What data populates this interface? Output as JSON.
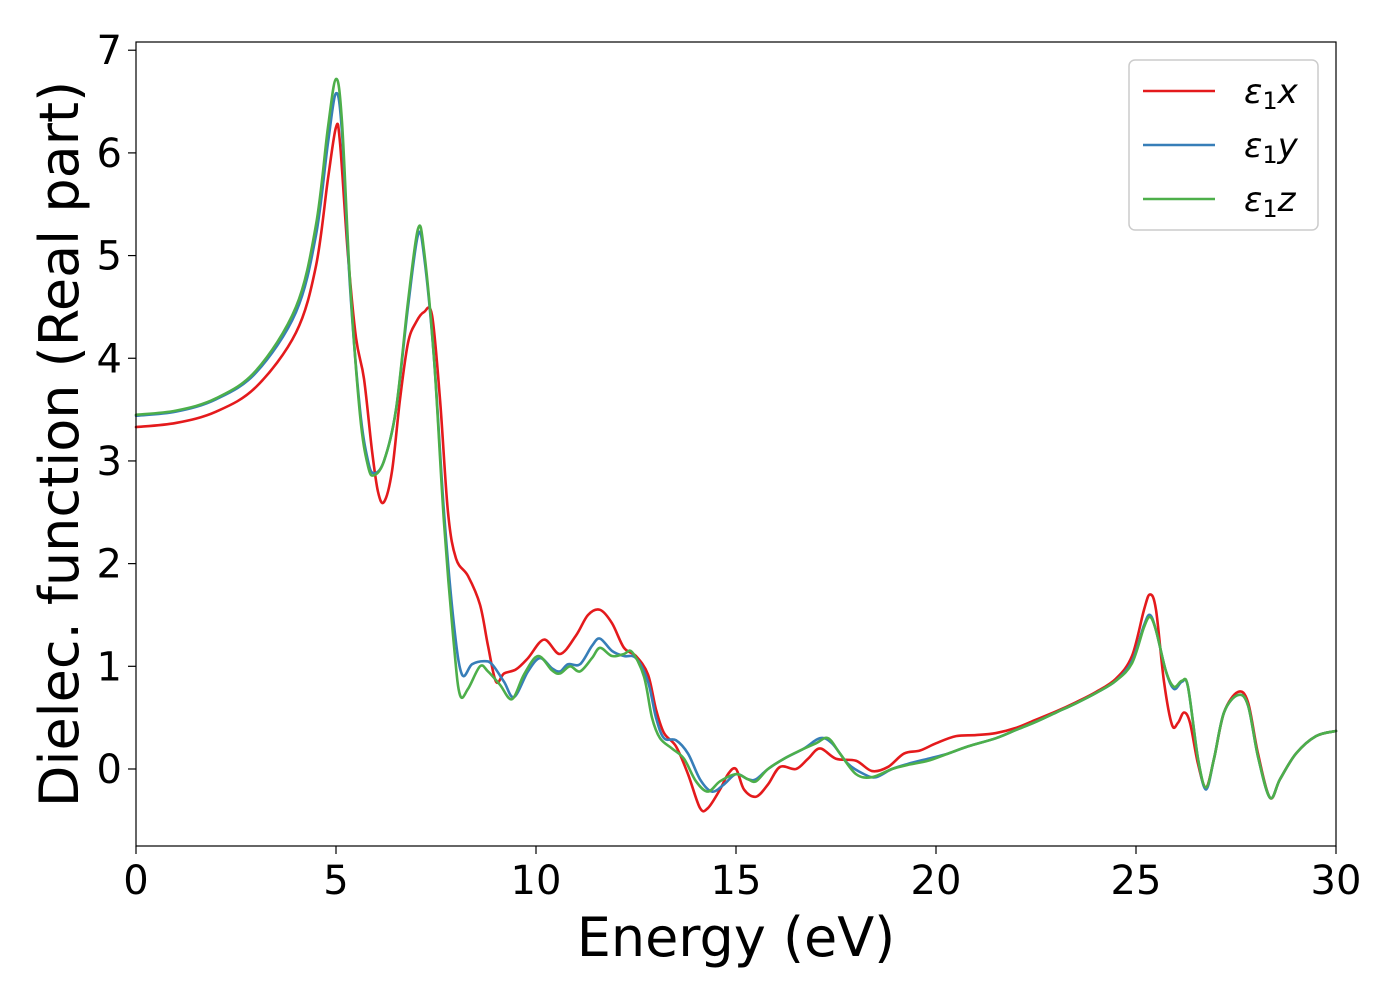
{
  "chart_data": {
    "type": "line",
    "xlabel": "Energy (eV)",
    "ylabel": "Dielec. function (Real part)",
    "xlim": [
      0,
      30
    ],
    "ylim": [
      -0.75,
      7.08
    ],
    "xticks": [
      0,
      5,
      10,
      15,
      20,
      25,
      30
    ],
    "yticks": [
      0,
      1,
      2,
      3,
      4,
      5,
      6,
      7
    ],
    "grid": false,
    "legend_position": "top-right",
    "series": [
      {
        "name": "ε1x",
        "legend": {
          "prefix": "ε",
          "sub": "1",
          "suffix": "x"
        },
        "color": "#e41a1c",
        "points": [
          [
            0,
            3.33
          ],
          [
            1,
            3.37
          ],
          [
            2,
            3.48
          ],
          [
            3,
            3.72
          ],
          [
            4,
            4.25
          ],
          [
            4.5,
            4.9
          ],
          [
            4.8,
            5.75
          ],
          [
            5.0,
            6.25
          ],
          [
            5.1,
            6.1
          ],
          [
            5.3,
            5.0
          ],
          [
            5.5,
            4.2
          ],
          [
            5.7,
            3.8
          ],
          [
            5.9,
            3.1
          ],
          [
            6.05,
            2.7
          ],
          [
            6.2,
            2.6
          ],
          [
            6.4,
            2.9
          ],
          [
            6.6,
            3.6
          ],
          [
            6.8,
            4.15
          ],
          [
            7.0,
            4.35
          ],
          [
            7.2,
            4.45
          ],
          [
            7.4,
            4.42
          ],
          [
            7.6,
            3.6
          ],
          [
            7.8,
            2.5
          ],
          [
            8.0,
            2.05
          ],
          [
            8.3,
            1.88
          ],
          [
            8.6,
            1.6
          ],
          [
            8.8,
            1.2
          ],
          [
            9.0,
            0.85
          ],
          [
            9.2,
            0.93
          ],
          [
            9.5,
            0.97
          ],
          [
            9.8,
            1.08
          ],
          [
            10.2,
            1.26
          ],
          [
            10.6,
            1.12
          ],
          [
            11.0,
            1.3
          ],
          [
            11.3,
            1.5
          ],
          [
            11.6,
            1.55
          ],
          [
            11.9,
            1.42
          ],
          [
            12.2,
            1.18
          ],
          [
            12.5,
            1.1
          ],
          [
            12.8,
            0.92
          ],
          [
            13.0,
            0.58
          ],
          [
            13.2,
            0.35
          ],
          [
            13.5,
            0.22
          ],
          [
            13.8,
            -0.05
          ],
          [
            14.1,
            -0.38
          ],
          [
            14.3,
            -0.38
          ],
          [
            14.6,
            -0.2
          ],
          [
            14.8,
            -0.05
          ],
          [
            15.0,
            0.0
          ],
          [
            15.2,
            -0.2
          ],
          [
            15.5,
            -0.27
          ],
          [
            15.8,
            -0.15
          ],
          [
            16.1,
            0.02
          ],
          [
            16.5,
            0.0
          ],
          [
            16.8,
            0.1
          ],
          [
            17.1,
            0.2
          ],
          [
            17.5,
            0.1
          ],
          [
            18.0,
            0.08
          ],
          [
            18.4,
            -0.02
          ],
          [
            18.8,
            0.02
          ],
          [
            19.2,
            0.15
          ],
          [
            19.6,
            0.18
          ],
          [
            20.0,
            0.25
          ],
          [
            20.5,
            0.32
          ],
          [
            21.0,
            0.33
          ],
          [
            21.5,
            0.35
          ],
          [
            22.0,
            0.4
          ],
          [
            22.5,
            0.48
          ],
          [
            23.0,
            0.56
          ],
          [
            23.5,
            0.65
          ],
          [
            24.0,
            0.75
          ],
          [
            24.5,
            0.88
          ],
          [
            24.9,
            1.1
          ],
          [
            25.2,
            1.55
          ],
          [
            25.35,
            1.7
          ],
          [
            25.5,
            1.55
          ],
          [
            25.7,
            0.85
          ],
          [
            25.9,
            0.43
          ],
          [
            26.05,
            0.45
          ],
          [
            26.2,
            0.55
          ],
          [
            26.35,
            0.45
          ],
          [
            26.55,
            0.05
          ],
          [
            26.75,
            -0.18
          ],
          [
            26.95,
            0.1
          ],
          [
            27.2,
            0.55
          ],
          [
            27.55,
            0.75
          ],
          [
            27.8,
            0.65
          ],
          [
            28.05,
            0.15
          ],
          [
            28.35,
            -0.28
          ],
          [
            28.6,
            -0.1
          ],
          [
            29.0,
            0.15
          ],
          [
            29.5,
            0.32
          ],
          [
            30.0,
            0.37
          ]
        ]
      },
      {
        "name": "ε1y",
        "legend": {
          "prefix": "ε",
          "sub": "1",
          "suffix": "y"
        },
        "color": "#377eb8",
        "points": [
          [
            0,
            3.44
          ],
          [
            1,
            3.48
          ],
          [
            2,
            3.6
          ],
          [
            3,
            3.86
          ],
          [
            4,
            4.45
          ],
          [
            4.5,
            5.2
          ],
          [
            4.8,
            6.1
          ],
          [
            5.0,
            6.58
          ],
          [
            5.15,
            6.2
          ],
          [
            5.35,
            4.7
          ],
          [
            5.6,
            3.5
          ],
          [
            5.8,
            3.0
          ],
          [
            5.95,
            2.88
          ],
          [
            6.2,
            3.0
          ],
          [
            6.5,
            3.5
          ],
          [
            6.8,
            4.5
          ],
          [
            7.05,
            5.2
          ],
          [
            7.2,
            5.0
          ],
          [
            7.45,
            4.0
          ],
          [
            7.7,
            2.5
          ],
          [
            7.95,
            1.4
          ],
          [
            8.15,
            0.92
          ],
          [
            8.4,
            1.02
          ],
          [
            8.7,
            1.05
          ],
          [
            8.9,
            1.02
          ],
          [
            9.2,
            0.85
          ],
          [
            9.45,
            0.7
          ],
          [
            9.8,
            0.95
          ],
          [
            10.1,
            1.08
          ],
          [
            10.4,
            0.98
          ],
          [
            10.6,
            0.95
          ],
          [
            10.8,
            1.02
          ],
          [
            11.1,
            1.02
          ],
          [
            11.4,
            1.2
          ],
          [
            11.6,
            1.27
          ],
          [
            11.9,
            1.15
          ],
          [
            12.2,
            1.1
          ],
          [
            12.5,
            1.08
          ],
          [
            12.8,
            0.85
          ],
          [
            13.0,
            0.5
          ],
          [
            13.2,
            0.3
          ],
          [
            13.5,
            0.28
          ],
          [
            13.8,
            0.15
          ],
          [
            14.1,
            -0.1
          ],
          [
            14.4,
            -0.22
          ],
          [
            14.7,
            -0.15
          ],
          [
            15.0,
            -0.05
          ],
          [
            15.3,
            -0.1
          ],
          [
            15.5,
            -0.1
          ],
          [
            15.8,
            0.0
          ],
          [
            16.2,
            0.1
          ],
          [
            16.7,
            0.2
          ],
          [
            17.1,
            0.3
          ],
          [
            17.4,
            0.25
          ],
          [
            17.8,
            0.05
          ],
          [
            18.2,
            -0.05
          ],
          [
            18.5,
            -0.08
          ],
          [
            18.9,
            0.0
          ],
          [
            19.3,
            0.05
          ],
          [
            19.8,
            0.1
          ],
          [
            20.3,
            0.15
          ],
          [
            20.8,
            0.22
          ],
          [
            21.5,
            0.3
          ],
          [
            22.0,
            0.38
          ],
          [
            22.5,
            0.46
          ],
          [
            23.0,
            0.55
          ],
          [
            23.5,
            0.64
          ],
          [
            24.0,
            0.74
          ],
          [
            24.5,
            0.86
          ],
          [
            24.9,
            1.05
          ],
          [
            25.2,
            1.4
          ],
          [
            25.35,
            1.5
          ],
          [
            25.5,
            1.35
          ],
          [
            25.75,
            0.95
          ],
          [
            25.95,
            0.78
          ],
          [
            26.15,
            0.85
          ],
          [
            26.3,
            0.8
          ],
          [
            26.55,
            0.1
          ],
          [
            26.75,
            -0.2
          ],
          [
            26.95,
            0.1
          ],
          [
            27.2,
            0.55
          ],
          [
            27.55,
            0.72
          ],
          [
            27.8,
            0.62
          ],
          [
            28.05,
            0.12
          ],
          [
            28.35,
            -0.28
          ],
          [
            28.6,
            -0.1
          ],
          [
            29.0,
            0.15
          ],
          [
            29.5,
            0.32
          ],
          [
            30.0,
            0.37
          ]
        ]
      },
      {
        "name": "ε1z",
        "legend": {
          "prefix": "ε",
          "sub": "1",
          "suffix": "z"
        },
        "color": "#4daf4a",
        "points": [
          [
            0,
            3.45
          ],
          [
            1,
            3.49
          ],
          [
            2,
            3.61
          ],
          [
            3,
            3.88
          ],
          [
            4,
            4.5
          ],
          [
            4.5,
            5.3
          ],
          [
            4.8,
            6.25
          ],
          [
            5.0,
            6.72
          ],
          [
            5.15,
            6.3
          ],
          [
            5.35,
            4.75
          ],
          [
            5.6,
            3.45
          ],
          [
            5.8,
            2.95
          ],
          [
            5.95,
            2.86
          ],
          [
            6.2,
            3.0
          ],
          [
            6.5,
            3.5
          ],
          [
            6.8,
            4.55
          ],
          [
            7.05,
            5.26
          ],
          [
            7.2,
            5.05
          ],
          [
            7.45,
            4.0
          ],
          [
            7.7,
            2.4
          ],
          [
            7.95,
            1.2
          ],
          [
            8.1,
            0.72
          ],
          [
            8.3,
            0.78
          ],
          [
            8.6,
            1.0
          ],
          [
            8.8,
            0.95
          ],
          [
            9.1,
            0.82
          ],
          [
            9.4,
            0.68
          ],
          [
            9.7,
            0.92
          ],
          [
            10.05,
            1.1
          ],
          [
            10.4,
            0.96
          ],
          [
            10.6,
            0.93
          ],
          [
            10.85,
            1.0
          ],
          [
            11.1,
            0.95
          ],
          [
            11.4,
            1.08
          ],
          [
            11.6,
            1.18
          ],
          [
            11.9,
            1.1
          ],
          [
            12.2,
            1.12
          ],
          [
            12.4,
            1.14
          ],
          [
            12.7,
            0.9
          ],
          [
            12.9,
            0.5
          ],
          [
            13.1,
            0.3
          ],
          [
            13.4,
            0.2
          ],
          [
            13.7,
            0.1
          ],
          [
            14.0,
            -0.12
          ],
          [
            14.3,
            -0.22
          ],
          [
            14.6,
            -0.12
          ],
          [
            15.0,
            -0.05
          ],
          [
            15.3,
            -0.1
          ],
          [
            15.5,
            -0.12
          ],
          [
            15.8,
            0.0
          ],
          [
            16.2,
            0.1
          ],
          [
            16.6,
            0.18
          ],
          [
            17.0,
            0.25
          ],
          [
            17.3,
            0.3
          ],
          [
            17.6,
            0.15
          ],
          [
            18.0,
            -0.05
          ],
          [
            18.4,
            -0.08
          ],
          [
            18.9,
            0.0
          ],
          [
            19.3,
            0.04
          ],
          [
            19.8,
            0.08
          ],
          [
            20.3,
            0.15
          ],
          [
            20.8,
            0.22
          ],
          [
            21.5,
            0.3
          ],
          [
            22.0,
            0.38
          ],
          [
            22.5,
            0.46
          ],
          [
            23.0,
            0.55
          ],
          [
            23.5,
            0.64
          ],
          [
            24.0,
            0.74
          ],
          [
            24.5,
            0.86
          ],
          [
            24.9,
            1.03
          ],
          [
            25.2,
            1.38
          ],
          [
            25.35,
            1.48
          ],
          [
            25.5,
            1.35
          ],
          [
            25.75,
            0.95
          ],
          [
            25.95,
            0.8
          ],
          [
            26.15,
            0.86
          ],
          [
            26.3,
            0.8
          ],
          [
            26.55,
            0.1
          ],
          [
            26.75,
            -0.18
          ],
          [
            26.95,
            0.1
          ],
          [
            27.2,
            0.55
          ],
          [
            27.55,
            0.72
          ],
          [
            27.8,
            0.62
          ],
          [
            28.05,
            0.12
          ],
          [
            28.35,
            -0.28
          ],
          [
            28.6,
            -0.1
          ],
          [
            29.0,
            0.15
          ],
          [
            29.5,
            0.32
          ],
          [
            30.0,
            0.37
          ]
        ]
      }
    ]
  }
}
